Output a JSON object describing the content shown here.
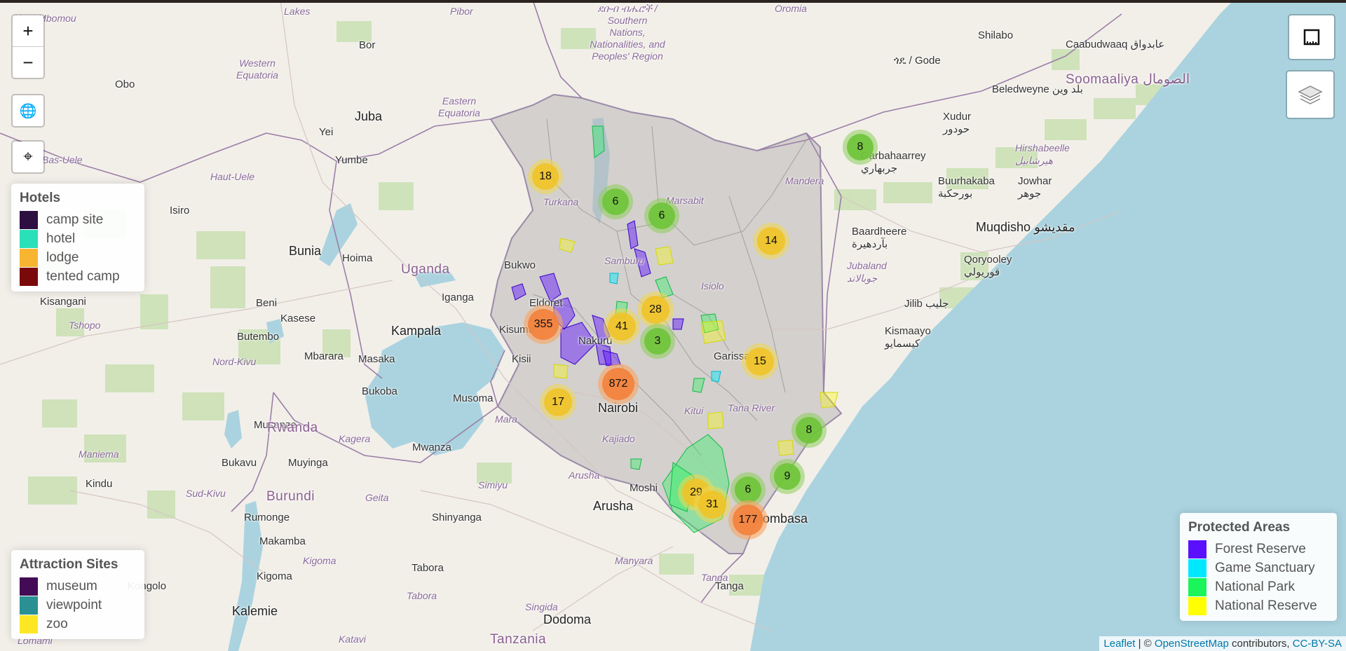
{
  "controls": {
    "zoom_in": "+",
    "zoom_out": "−",
    "globe_icon": "🌐",
    "locate_icon": "⌖"
  },
  "legend_hotels": {
    "title": "Hotels",
    "items": [
      {
        "label": "camp site",
        "color": "#2e0f42"
      },
      {
        "label": "hotel",
        "color": "#2ae0b8"
      },
      {
        "label": "lodge",
        "color": "#f7b531"
      },
      {
        "label": "tented camp",
        "color": "#7a0a0a"
      }
    ]
  },
  "legend_attractions": {
    "title": "Attraction Sites",
    "items": [
      {
        "label": "museum",
        "color": "#430a55"
      },
      {
        "label": "viewpoint",
        "color": "#2a9093"
      },
      {
        "label": "zoo",
        "color": "#fde725"
      }
    ]
  },
  "legend_protected": {
    "title": "Protected Areas",
    "items": [
      {
        "label": "Forest Reserve",
        "color": "#5a10ff"
      },
      {
        "label": "Game Sanctuary",
        "color": "#00e8ff"
      },
      {
        "label": "National Park",
        "color": "#19f55a"
      },
      {
        "label": "National Reserve",
        "color": "#ffff00"
      }
    ]
  },
  "clusters": [
    {
      "count": "18",
      "level": "yellow"
    },
    {
      "count": "6",
      "level": "green"
    },
    {
      "count": "6",
      "level": "green"
    },
    {
      "count": "8",
      "level": "green"
    },
    {
      "count": "14",
      "level": "yellow"
    },
    {
      "count": "28",
      "level": "yellow"
    },
    {
      "count": "355",
      "level": "orange"
    },
    {
      "count": "41",
      "level": "yellow"
    },
    {
      "count": "3",
      "level": "green"
    },
    {
      "count": "15",
      "level": "yellow"
    },
    {
      "count": "872",
      "level": "orange"
    },
    {
      "count": "17",
      "level": "yellow"
    },
    {
      "count": "8",
      "level": "green"
    },
    {
      "count": "9",
      "level": "green"
    },
    {
      "count": "6",
      "level": "green"
    },
    {
      "count": "29",
      "level": "yellow"
    },
    {
      "count": "31",
      "level": "yellow"
    },
    {
      "count": "177",
      "level": "orange"
    }
  ],
  "places": {
    "haut_mbomou": "Haut-Mbomou",
    "lakes": "Lakes",
    "pibor": "Pibor",
    "southern_nations": "ደቡብ ብሔሮች / Southern Nations, Nationalities, and Peoples' Region",
    "oromia": "Oromia",
    "shilabo": "Shilabo",
    "gode": "ጎዴ / Gode",
    "galbudwaaq": "Caabudwaaq عابدواق",
    "beledweyne": "Beledweyne بلد وين",
    "somaaliya": "Soomaaliya الصومال",
    "western_equatoria": "Western Equatoria",
    "bor": "Bor",
    "obo": "Obo",
    "eastern_equatoria": "Eastern Equatoria",
    "juba": "Juba",
    "yei": "Yei",
    "bas_uele": "Bas-Uele",
    "yumbe": "Yumbe",
    "haut_uele": "Haut-Uele",
    "isiro": "Isiro",
    "turkana": "Turkana",
    "marsabit": "Marsabit",
    "mandera": "Mandera",
    "garbahaarrey": "Garbahaarrey جربهاري",
    "xudur": "Xudur حودور",
    "hiiraan": "Hirshabeelle هيرشابيل",
    "buurhakaba": "Buurhakaba بورحكبة",
    "jowhar": "Jowhar جوهر",
    "baardheere": "Baardheere بآردهيرة",
    "muqdisho": "Muqdisho مقديشو",
    "jubaland": "Jubaland جوبالاند",
    "qoryooley": "Qoryooley قوريولي",
    "bunia": "Bunia",
    "hoima": "Hoima",
    "uganda": "Uganda",
    "bukwo": "Bukwo",
    "samburu": "Samburu",
    "isiolo": "Isiolo",
    "kisangani": "Kisangani",
    "beni": "Beni",
    "igang": "Iganga",
    "tshopo": "Tshopo",
    "kasese": "Kasese",
    "kampala": "Kampala",
    "eldoret": "Eldoret",
    "jilib": "Jilib جليب",
    "kismaayo": "Kismaayo كيسمايو",
    "butembo": "Butembo",
    "mbarara": "Mbarara",
    "masaka": "Masaka",
    "kisii": "Kisii",
    "nakuru": "Nakuru",
    "garissa": "Garissa",
    "nord_kivu": "Nord-Kivu",
    "bukoba": "Bukoba",
    "musoma": "Musoma",
    "nairobi": "Nairobi",
    "kitui": "Kitui",
    "tana_river": "Tana River",
    "mara": "Mara",
    "musanze": "Musanze",
    "rwanda": "Rwanda",
    "kagera": "Kagera",
    "mwanza": "Mwanza",
    "kajiado": "Kajiado",
    "maniema": "Maniema",
    "bukavu": "Bukavu",
    "muyinga": "Muyinga",
    "arusha_region": "Arusha",
    "simiyu": "Simiyu",
    "moshi": "Moshi",
    "kindu": "Kindu",
    "sud_kivu": "Sud-Kivu",
    "burundi": "Burundi",
    "geita": "Geita",
    "shinyanga": "Shinyanga",
    "arusha": "Arusha",
    "mombasa": "Mombasa",
    "rumonge": "Rumonge",
    "makamba": "Makamba",
    "kigoma_region": "Kigoma",
    "tabora": "Tabora",
    "manyara": "Manyara",
    "tanga_region": "Tanga",
    "kongolo": "Kongolo",
    "kigoma": "Kigoma",
    "tabora_region": "Tabora",
    "singida": "Singida",
    "tanga": "Tanga",
    "kalemie": "Kalemie",
    "dodoma": "Dodoma",
    "lomami": "Lomami",
    "katavi": "Katavi",
    "tanzania": "Tanzania",
    "kisumu": "Kisumu"
  },
  "attribution": {
    "leaflet": "Leaflet",
    "sep": " | © ",
    "osm": "OpenStreetMap",
    "contrib": " contributors, ",
    "license": "CC-BY-SA"
  },
  "colors": {
    "land": "#f2efe9",
    "water": "#aad3df",
    "kenya_overlay": "#b9b6b6",
    "forest": "#b8d9a2"
  }
}
